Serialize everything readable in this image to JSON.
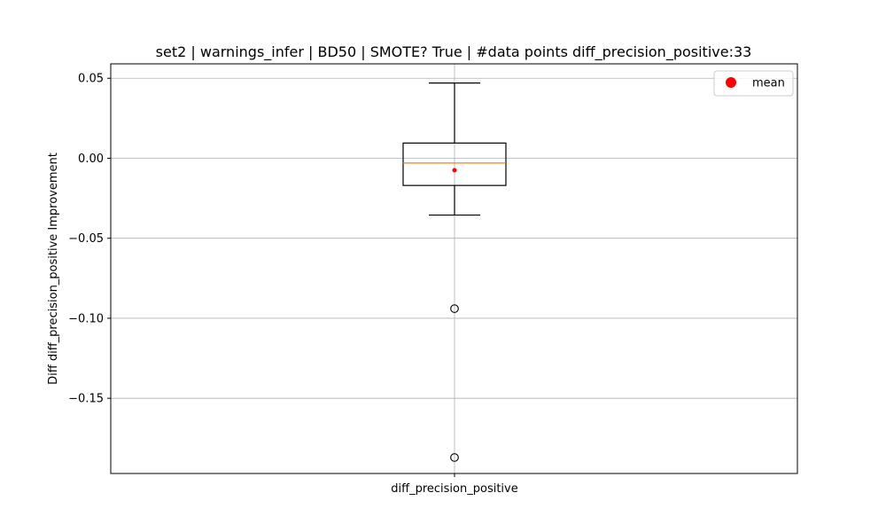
{
  "chart_data": {
    "type": "box",
    "title": "set2 | warnings_infer | BD50 | SMOTE? True | #data points diff_precision_positive:33",
    "xlabel": "",
    "ylabel": "Diff diff_precision_positive Improvement",
    "categories": [
      "diff_precision_positive"
    ],
    "ylim": [
      -0.197,
      0.059
    ],
    "yticks": [
      0.05,
      0.0,
      -0.05,
      -0.1,
      -0.15
    ],
    "ytick_labels": [
      "0.05",
      "0.00",
      "−0.05",
      "−0.10",
      "−0.15"
    ],
    "grid": true,
    "legend": {
      "placement": "top-right",
      "entries": [
        {
          "label": "mean",
          "color": "#ff0000",
          "marker": "circle"
        }
      ]
    },
    "boxes": [
      {
        "name": "diff_precision_positive",
        "whisker_low": -0.0355,
        "q1": -0.017,
        "median": -0.003,
        "q3": 0.0095,
        "whisker_high": 0.047,
        "mean": -0.0075,
        "outliers": [
          -0.094,
          -0.187
        ]
      }
    ],
    "colors": {
      "box": "#000000",
      "median": "#ff7f0e",
      "mean": "#ff0000",
      "grid": "#b0b0b0"
    }
  }
}
